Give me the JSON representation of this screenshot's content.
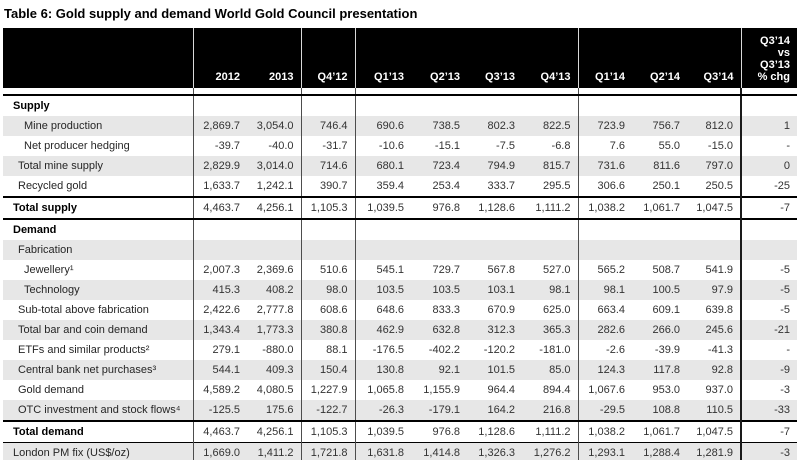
{
  "title": "Table 6: Gold supply and demand World Gold Council presentation",
  "table": {
    "columns": [
      "2012",
      "2013",
      "Q4’12",
      "Q1’13",
      "Q2’13",
      "Q3’13",
      "Q4’13",
      "Q1’14",
      "Q2’14",
      "Q3’14"
    ],
    "last_column_header": "Q3’14\nvs\nQ3’13\n% chg",
    "rows": [
      {
        "label": "Supply",
        "indent": 0,
        "bold": true,
        "shaded": false,
        "rule_top": null,
        "values": [
          "",
          "",
          "",
          "",
          "",
          "",
          "",
          "",
          "",
          "",
          ""
        ]
      },
      {
        "label": "Mine production",
        "indent": 2,
        "bold": false,
        "shaded": true,
        "rule_top": null,
        "values": [
          "2,869.7",
          "3,054.0",
          "746.4",
          "690.6",
          "738.5",
          "802.3",
          "822.5",
          "723.9",
          "756.7",
          "812.0",
          "1"
        ]
      },
      {
        "label": "Net producer hedging",
        "indent": 2,
        "bold": false,
        "shaded": false,
        "rule_top": null,
        "values": [
          "-39.7",
          "-40.0",
          "-31.7",
          "-10.6",
          "-15.1",
          "-7.5",
          "-6.8",
          "7.6",
          "55.0",
          "-15.0",
          "-"
        ]
      },
      {
        "label": "Total mine supply",
        "indent": 1,
        "bold": false,
        "shaded": true,
        "rule_top": null,
        "values": [
          "2,829.9",
          "3,014.0",
          "714.6",
          "680.1",
          "723.4",
          "794.9",
          "815.7",
          "731.6",
          "811.6",
          "797.0",
          "0"
        ]
      },
      {
        "label": "Recycled gold",
        "indent": 1,
        "bold": false,
        "shaded": false,
        "rule_top": null,
        "values": [
          "1,633.7",
          "1,242.1",
          "390.7",
          "359.4",
          "253.4",
          "333.7",
          "295.5",
          "306.6",
          "250.1",
          "250.5",
          "-25"
        ]
      },
      {
        "label": "Total supply",
        "indent": 0,
        "bold": true,
        "shaded": false,
        "rule_top": "thick",
        "values": [
          "4,463.7",
          "4,256.1",
          "1,105.3",
          "1,039.5",
          "976.8",
          "1,128.6",
          "1,111.2",
          "1,038.2",
          "1,061.7",
          "1,047.5",
          "-7"
        ]
      },
      {
        "label": "Demand",
        "indent": 0,
        "bold": true,
        "shaded": false,
        "rule_top": "thick",
        "values": [
          "",
          "",
          "",
          "",
          "",
          "",
          "",
          "",
          "",
          "",
          ""
        ]
      },
      {
        "label": "Fabrication",
        "indent": 1,
        "bold": false,
        "shaded": true,
        "rule_top": null,
        "values": [
          "",
          "",
          "",
          "",
          "",
          "",
          "",
          "",
          "",
          "",
          ""
        ]
      },
      {
        "label": "Jewellery¹",
        "indent": 2,
        "bold": false,
        "shaded": false,
        "rule_top": null,
        "values": [
          "2,007.3",
          "2,369.6",
          "510.6",
          "545.1",
          "729.7",
          "567.8",
          "527.0",
          "565.2",
          "508.7",
          "541.9",
          "-5"
        ]
      },
      {
        "label": "Technology",
        "indent": 2,
        "bold": false,
        "shaded": true,
        "rule_top": null,
        "values": [
          "415.3",
          "408.2",
          "98.0",
          "103.5",
          "103.5",
          "103.1",
          "98.1",
          "98.1",
          "100.5",
          "97.9",
          "-5"
        ]
      },
      {
        "label": "Sub-total above fabrication",
        "indent": 1,
        "bold": false,
        "shaded": false,
        "rule_top": null,
        "values": [
          "2,422.6",
          "2,777.8",
          "608.6",
          "648.6",
          "833.3",
          "670.9",
          "625.0",
          "663.4",
          "609.1",
          "639.8",
          "-5"
        ]
      },
      {
        "label": "Total bar and coin demand",
        "indent": 1,
        "bold": false,
        "shaded": true,
        "rule_top": null,
        "values": [
          "1,343.4",
          "1,773.3",
          "380.8",
          "462.9",
          "632.8",
          "312.3",
          "365.3",
          "282.6",
          "266.0",
          "245.6",
          "-21"
        ]
      },
      {
        "label": "ETFs and similar products²",
        "indent": 1,
        "bold": false,
        "shaded": false,
        "rule_top": null,
        "values": [
          "279.1",
          "-880.0",
          "88.1",
          "-176.5",
          "-402.2",
          "-120.2",
          "-181.0",
          "-2.6",
          "-39.9",
          "-41.3",
          "-"
        ]
      },
      {
        "label": "Central bank net purchases³",
        "indent": 1,
        "bold": false,
        "shaded": true,
        "rule_top": null,
        "values": [
          "544.1",
          "409.3",
          "150.4",
          "130.8",
          "92.1",
          "101.5",
          "85.0",
          "124.3",
          "117.8",
          "92.8",
          "-9"
        ]
      },
      {
        "label": "Gold demand",
        "indent": 1,
        "bold": false,
        "shaded": false,
        "rule_top": null,
        "values": [
          "4,589.2",
          "4,080.5",
          "1,227.9",
          "1,065.8",
          "1,155.9",
          "964.4",
          "894.4",
          "1,067.6",
          "953.0",
          "937.0",
          "-3"
        ]
      },
      {
        "label": "OTC investment and stock flows⁴",
        "indent": 1,
        "bold": false,
        "shaded": true,
        "rule_top": null,
        "values": [
          "-125.5",
          "175.6",
          "-122.7",
          "-26.3",
          "-179.1",
          "164.2",
          "216.8",
          "-29.5",
          "108.8",
          "110.5",
          "-33"
        ]
      },
      {
        "label": "Total demand",
        "indent": 0,
        "bold": true,
        "shaded": false,
        "rule_top": "thick",
        "values": [
          "4,463.7",
          "4,256.1",
          "1,105.3",
          "1,039.5",
          "976.8",
          "1,128.6",
          "1,111.2",
          "1,038.2",
          "1,061.7",
          "1,047.5",
          "-7"
        ]
      },
      {
        "label": "London PM fix (US$/oz)",
        "indent": 0,
        "bold": false,
        "shaded": true,
        "rule_top": "thin",
        "values": [
          "1,669.0",
          "1,411.2",
          "1,721.8",
          "1,631.8",
          "1,414.8",
          "1,326.3",
          "1,276.2",
          "1,293.1",
          "1,288.4",
          "1,281.9",
          "-3"
        ]
      }
    ]
  }
}
